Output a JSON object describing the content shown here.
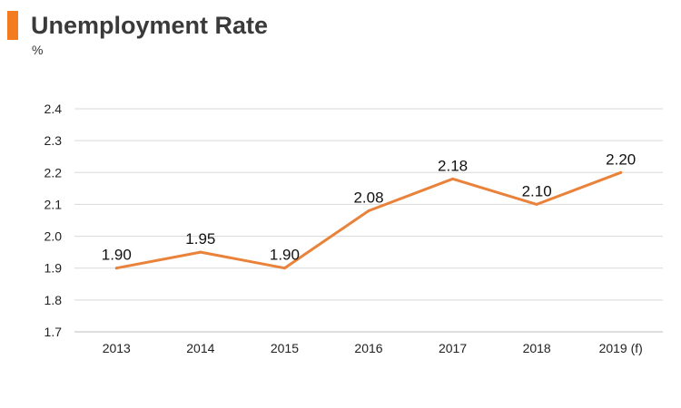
{
  "header": {
    "title": "Unemployment Rate",
    "unit": "%"
  },
  "colors": {
    "accent": "#F47C20",
    "line": "#E9823A",
    "grid": "#D9D9D9"
  },
  "chart_data": {
    "type": "line",
    "title": "Unemployment Rate",
    "xlabel": "",
    "ylabel": "%",
    "categories": [
      "2013",
      "2014",
      "2015",
      "2016",
      "2017",
      "2018",
      "2019 (f)"
    ],
    "series": [
      {
        "values": [
          1.9,
          1.95,
          1.9,
          2.08,
          2.18,
          2.1,
          2.2
        ]
      }
    ],
    "data_labels": [
      "1.90",
      "1.95",
      "1.90",
      "2.08",
      "2.18",
      "2.10",
      "2.20"
    ],
    "ylim": [
      1.7,
      2.4
    ],
    "yticks": [
      "1.7",
      "1.8",
      "1.9",
      "2.0",
      "2.1",
      "2.2",
      "2.3",
      "2.4"
    ],
    "grid": true,
    "legend": "none"
  }
}
